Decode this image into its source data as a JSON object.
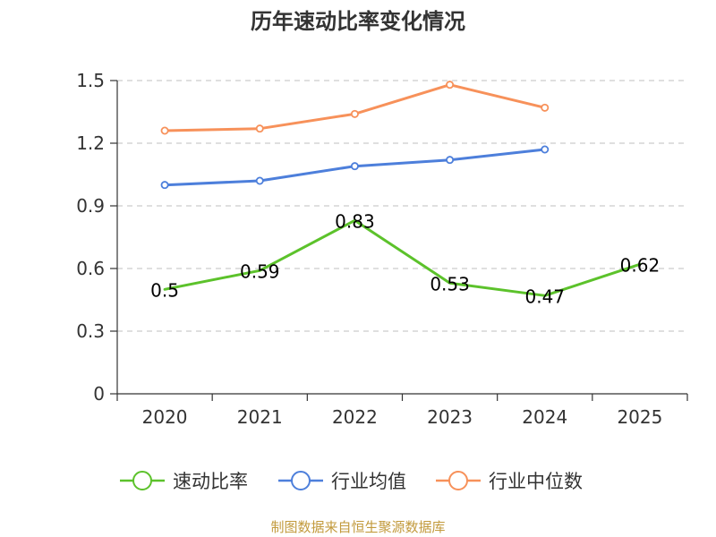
{
  "chart_data": {
    "type": "line",
    "title": "历年速动比率变化情况",
    "categories": [
      "2020",
      "2021",
      "2022",
      "2023",
      "2024",
      "2025"
    ],
    "ylim": [
      0,
      1.5
    ],
    "yticks": [
      "0",
      "0.3",
      "0.6",
      "0.9",
      "1.2",
      "1.5"
    ],
    "grid": true,
    "legend_position": "bottom",
    "series": [
      {
        "name": "速动比率",
        "color": "#5cc22b",
        "values": [
          0.5,
          0.59,
          0.83,
          0.53,
          0.47,
          0.62
        ],
        "labels": [
          "0.5",
          "0.59",
          "0.83",
          "0.53",
          "0.47",
          "0.62"
        ],
        "show_labels": true,
        "show_markers": false
      },
      {
        "name": "行业均值",
        "color": "#4d7fdb",
        "values": [
          1.0,
          1.02,
          1.09,
          1.12,
          1.17,
          null
        ],
        "show_labels": false,
        "show_markers": true
      },
      {
        "name": "行业中位数",
        "color": "#f7915a",
        "values": [
          1.26,
          1.27,
          1.34,
          1.48,
          1.37,
          null
        ],
        "show_labels": false,
        "show_markers": true
      }
    ]
  },
  "source": "制图数据来自恒生聚源数据库"
}
